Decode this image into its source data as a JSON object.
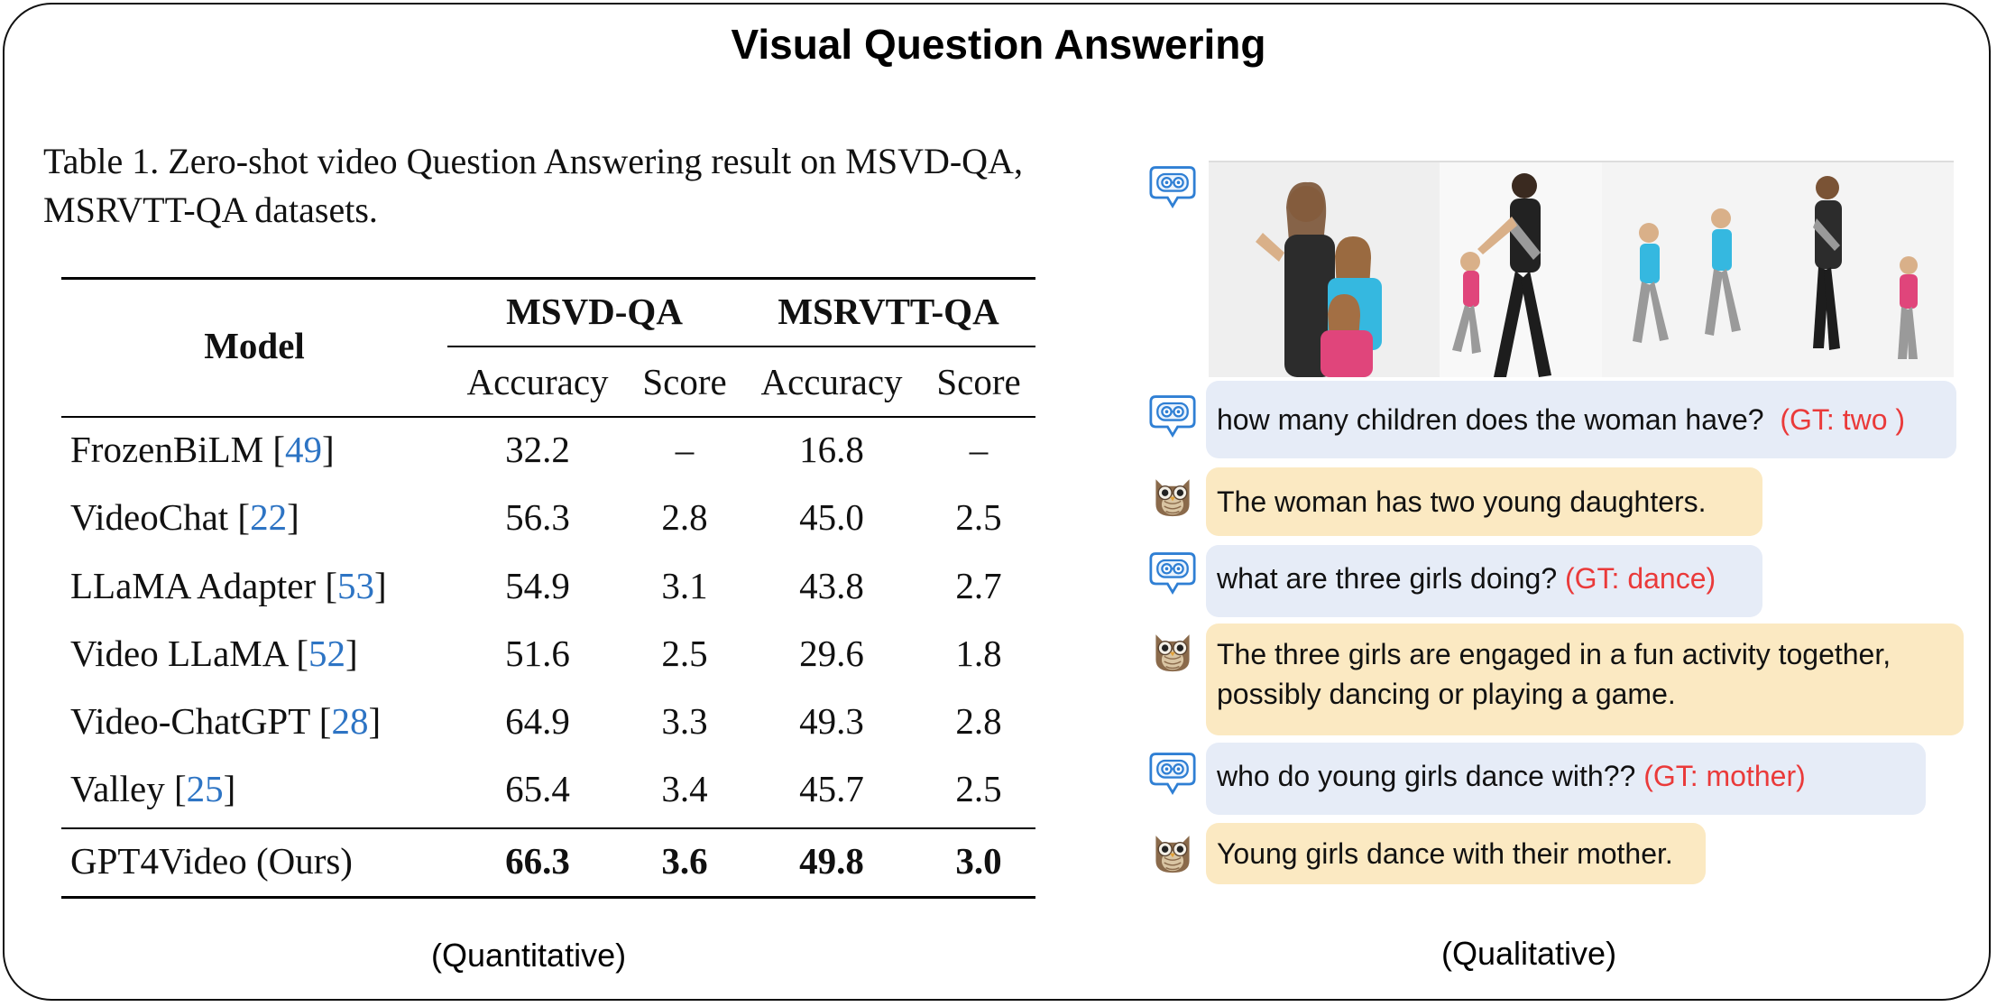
{
  "title": "Visual Question Answering",
  "table": {
    "caption": "Table 1.  Zero-shot video Question Answering result on MSVD-QA, MSRVTT-QA datasets.",
    "model_header": "Model",
    "groups": [
      "MSVD-QA",
      "MSRVTT-QA"
    ],
    "subheaders": [
      "Accuracy",
      "Score",
      "Accuracy",
      "Score"
    ],
    "rows": [
      {
        "model": "FrozenBiLM",
        "ref": "49",
        "values": [
          "32.2",
          "–",
          "16.8",
          "–"
        ]
      },
      {
        "model": "VideoChat",
        "ref": "22",
        "values": [
          "56.3",
          "2.8",
          "45.0",
          "2.5"
        ]
      },
      {
        "model": "LLaMA Adapter",
        "ref": "53",
        "values": [
          "54.9",
          "3.1",
          "43.8",
          "2.7"
        ]
      },
      {
        "model": "Video LLaMA",
        "ref": "52",
        "values": [
          "51.6",
          "2.5",
          "29.6",
          "1.8"
        ]
      },
      {
        "model": "Video-ChatGPT",
        "ref": "28",
        "values": [
          "64.9",
          "3.3",
          "49.3",
          "2.8"
        ]
      },
      {
        "model": "Valley",
        "ref": "25",
        "values": [
          "65.4",
          "3.4",
          "45.7",
          "2.5"
        ]
      }
    ],
    "ours": {
      "model": "GPT4Video (Ours)",
      "values": [
        "66.3",
        "3.6",
        "49.8",
        "3.0"
      ]
    }
  },
  "labels": {
    "quantitative": "(Quantitative)",
    "qualitative": "(Qualitative)"
  },
  "chat": [
    {
      "role": "user",
      "text": "how many children does the woman have?",
      "gt": "(GT: two )"
    },
    {
      "role": "assistant",
      "text": "The woman has two young daughters."
    },
    {
      "role": "user",
      "text": "what are three girls doing?",
      "gt": "(GT: dance)"
    },
    {
      "role": "assistant",
      "lines": [
        "The three girls are engaged in a fun activity together,",
        "possibly dancing or playing a game."
      ]
    },
    {
      "role": "user",
      "text": "who do young girls dance with??",
      "gt": "(GT: mother)"
    },
    {
      "role": "assistant",
      "text": "Young girls dance with their mother."
    }
  ],
  "icons": {
    "user": "robot-chat-icon",
    "assistant": "owl-icon"
  },
  "colors": {
    "question_bubble": "#e6ecf7",
    "answer_bubble": "#fbe9c2",
    "ground_truth": "#ea3a3a",
    "citation": "#2d74c4"
  }
}
